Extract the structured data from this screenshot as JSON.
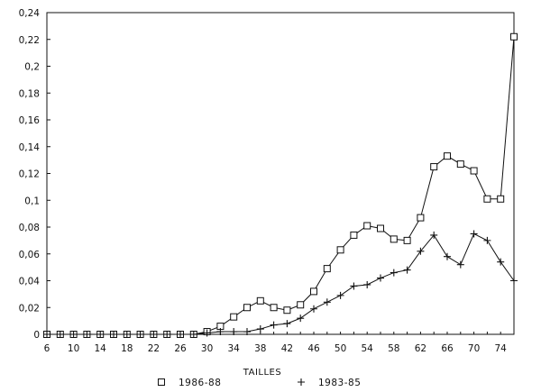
{
  "chart_data": {
    "type": "line",
    "title": "",
    "xlabel": "TAILLES",
    "ylabel": "",
    "x": [
      6,
      8,
      10,
      12,
      14,
      16,
      18,
      20,
      22,
      24,
      26,
      28,
      30,
      32,
      34,
      36,
      38,
      40,
      42,
      44,
      46,
      48,
      50,
      52,
      54,
      56,
      58,
      60,
      62,
      64,
      66,
      68,
      70,
      72,
      74,
      76
    ],
    "x_ticks": [
      6,
      10,
      14,
      18,
      22,
      26,
      30,
      34,
      38,
      42,
      46,
      50,
      54,
      58,
      62,
      66,
      70,
      74
    ],
    "x_tick_labels": [
      "6",
      "10",
      "14",
      "18",
      "22",
      "26",
      "30",
      "34",
      "38",
      "42",
      "46",
      "50",
      "54",
      "58",
      "62",
      "66",
      "70",
      "74"
    ],
    "xlim": [
      6,
      76
    ],
    "ylim": [
      0,
      0.24
    ],
    "y_ticks": [
      0,
      0.02,
      0.04,
      0.06,
      0.08,
      0.1,
      0.12,
      0.14,
      0.16,
      0.18,
      0.2,
      0.22,
      0.24
    ],
    "y_tick_labels": [
      "0",
      "0,02",
      "0,04",
      "0,06",
      "0,08",
      "0,1",
      "0,12",
      "0,14",
      "0,16",
      "0,18",
      "0,2",
      "0,22",
      "0,24"
    ],
    "grid": false,
    "legend_position": "bottom",
    "series": [
      {
        "name": "1986-88",
        "marker": "square",
        "color": "#111111",
        "values": [
          0,
          0,
          0,
          0,
          0,
          0,
          0,
          0,
          0,
          0,
          0,
          0,
          0.002,
          0.006,
          0.013,
          0.02,
          0.025,
          0.02,
          0.018,
          0.022,
          0.032,
          0.049,
          0.063,
          0.074,
          0.081,
          0.079,
          0.071,
          0.07,
          0.087,
          0.125,
          0.133,
          0.127,
          0.122,
          0.101,
          0.101,
          0.222
        ]
      },
      {
        "name": "1983-85",
        "marker": "plus",
        "color": "#111111",
        "values": [
          0,
          0,
          0,
          0,
          0,
          0,
          0,
          0,
          0,
          0,
          0,
          0,
          0.001,
          0.002,
          0.002,
          0.002,
          0.004,
          0.007,
          0.008,
          0.012,
          0.019,
          0.024,
          0.029,
          0.036,
          0.037,
          0.042,
          0.046,
          0.048,
          0.062,
          0.074,
          0.058,
          0.052,
          0.075,
          0.07,
          0.054,
          0.04
        ]
      }
    ]
  }
}
